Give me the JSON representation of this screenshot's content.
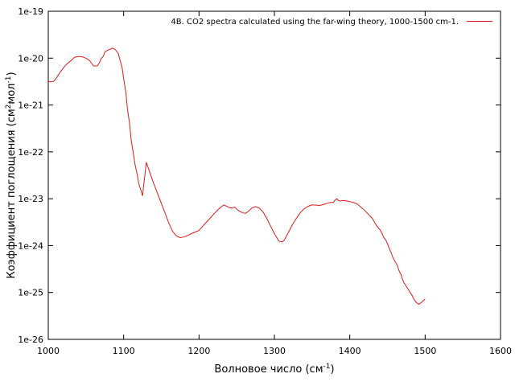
{
  "chart_data": {
    "type": "line",
    "title": "",
    "legend_position": "top-right",
    "grid": false,
    "y_scale": "log",
    "xlabel": {
      "base": "Волновое число (см",
      "sup": "-1",
      "tail": ")"
    },
    "ylabel": {
      "base": "Коэффициент поглощения (см",
      "sup1": "2",
      "mid": "мол",
      "sup2": "-1",
      "tail": ")"
    },
    "xlim": [
      1000,
      1600
    ],
    "ylim": [
      1e-26,
      1e-19
    ],
    "x_ticks": [
      1000,
      1100,
      1200,
      1300,
      1400,
      1500,
      1600
    ],
    "x_tick_labels": [
      "1000",
      "1100",
      "1200",
      "1300",
      "1400",
      "1500",
      "1600"
    ],
    "y_ticks": [
      1e-26,
      1e-25,
      1e-24,
      1e-23,
      1e-22,
      1e-21,
      1e-20,
      1e-19
    ],
    "y_tick_labels": [
      "1e-26",
      "1e-25",
      "1e-24",
      "1e-23",
      "1e-22",
      "1e-21",
      "1e-20",
      "1e-19"
    ],
    "series": [
      {
        "name": "4B. CO2 spectra calculated using the far-wing theory, 1000-1500 cm-1.",
        "color": "#e41a1c",
        "x": [
          1000,
          1003,
          1007,
          1010,
          1015,
          1020,
          1025,
          1030,
          1035,
          1040,
          1045,
          1050,
          1055,
          1060,
          1065,
          1068,
          1070,
          1073,
          1075,
          1078,
          1080,
          1083,
          1085,
          1088,
          1090,
          1093,
          1095,
          1098,
          1100,
          1103,
          1105,
          1108,
          1110,
          1113,
          1115,
          1118,
          1120,
          1123,
          1125,
          1130,
          1140,
          1150,
          1160,
          1165,
          1170,
          1175,
          1180,
          1185,
          1190,
          1195,
          1200,
          1205,
          1210,
          1215,
          1220,
          1225,
          1230,
          1233,
          1236,
          1240,
          1244,
          1247,
          1250,
          1254,
          1258,
          1262,
          1266,
          1270,
          1275,
          1280,
          1285,
          1290,
          1295,
          1300,
          1303,
          1306,
          1310,
          1313,
          1316,
          1320,
          1325,
          1330,
          1335,
          1340,
          1345,
          1350,
          1355,
          1360,
          1365,
          1370,
          1375,
          1378,
          1380,
          1383,
          1385,
          1388,
          1390,
          1395,
          1400,
          1405,
          1410,
          1415,
          1420,
          1425,
          1430,
          1433,
          1436,
          1440,
          1443,
          1445,
          1448,
          1450,
          1452,
          1455,
          1457,
          1460,
          1463,
          1465,
          1468,
          1470,
          1472,
          1475,
          1478,
          1480,
          1483,
          1485,
          1488,
          1490,
          1492,
          1495,
          1497,
          1500
        ],
        "y": [
          3.2e-21,
          3.1e-21,
          3.2e-21,
          3.6e-21,
          4.8e-21,
          6.2e-21,
          7.6e-21,
          8.8e-21,
          1.05e-20,
          1.08e-20,
          1.07e-20,
          1e-20,
          8.8e-21,
          6.8e-21,
          6.8e-21,
          8e-21,
          9.7e-21,
          1.1e-20,
          1.35e-20,
          1.45e-20,
          1.52e-20,
          1.56e-20,
          1.64e-20,
          1.56e-20,
          1.45e-20,
          1.25e-20,
          9.2e-21,
          6.2e-21,
          3.6e-21,
          1.8e-21,
          8.5e-22,
          3.8e-22,
          1.8e-22,
          9e-23,
          5.5e-23,
          3.3e-23,
          2.1e-23,
          1.5e-23,
          1.15e-23,
          6e-23,
          2.1e-23,
          8e-24,
          3e-24,
          2e-24,
          1.6e-24,
          1.48e-24,
          1.53e-24,
          1.65e-24,
          1.8e-24,
          1.95e-24,
          2.1e-24,
          2.6e-24,
          3.2e-24,
          3.9e-24,
          4.8e-24,
          5.8e-24,
          6.8e-24,
          7.4e-24,
          7e-24,
          6.5e-24,
          6.3e-24,
          6.7e-24,
          6e-24,
          5.4e-24,
          5e-24,
          4.9e-24,
          5.5e-24,
          6.3e-24,
          6.8e-24,
          6.3e-24,
          5.2e-24,
          3.8e-24,
          2.6e-24,
          1.8e-24,
          1.5e-24,
          1.25e-24,
          1.2e-24,
          1.3e-24,
          1.6e-24,
          2.1e-24,
          3e-24,
          4e-24,
          5.2e-24,
          6.2e-24,
          6.9e-24,
          7.4e-24,
          7.3e-24,
          7.2e-24,
          7.5e-24,
          8e-24,
          8.4e-24,
          8.3e-24,
          9.2e-24,
          1e-23,
          9.2e-24,
          8.9e-24,
          9.2e-24,
          9e-24,
          8.7e-24,
          8.3e-24,
          7.7e-24,
          6.6e-24,
          5.6e-24,
          4.6e-24,
          3.8e-24,
          3.1e-24,
          2.6e-24,
          2.2e-24,
          1.8e-24,
          1.5e-24,
          1.3e-24,
          1.1e-24,
          9e-25,
          7e-25,
          5.6e-25,
          4.6e-25,
          3.8e-25,
          3e-25,
          2.4e-25,
          1.9e-25,
          1.6e-25,
          1.35e-25,
          1.15e-25,
          1e-25,
          8.5e-26,
          7.2e-26,
          6.2e-26,
          5.8e-26,
          5.6e-26,
          6.1e-26,
          6.6e-26,
          7.2e-26
        ]
      }
    ]
  }
}
